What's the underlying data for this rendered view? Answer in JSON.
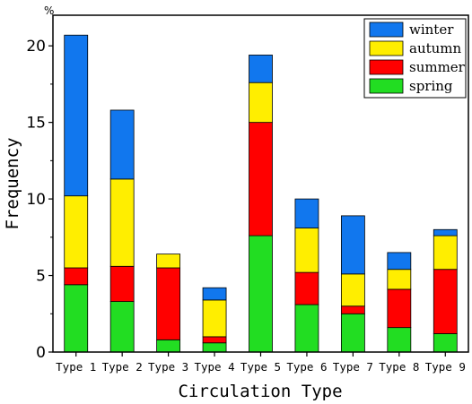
{
  "chart_data": {
    "type": "bar",
    "stacked": true,
    "categories": [
      "Type 1",
      "Type 2",
      "Type 3",
      "Type 4",
      "Type 5",
      "Type 6",
      "Type 7",
      "Type 8",
      "Type 9"
    ],
    "series": [
      {
        "name": "spring",
        "color": "#22dd22",
        "values": [
          4.4,
          3.3,
          0.8,
          0.6,
          7.6,
          3.1,
          2.5,
          1.6,
          1.2
        ]
      },
      {
        "name": "summer",
        "color": "#ff0000",
        "values": [
          1.1,
          2.3,
          4.7,
          0.4,
          7.4,
          2.1,
          0.5,
          2.5,
          4.2
        ]
      },
      {
        "name": "autumn",
        "color": "#ffee00",
        "values": [
          4.7,
          5.7,
          0.9,
          2.4,
          2.6,
          2.9,
          2.1,
          1.3,
          2.2
        ]
      },
      {
        "name": "winter",
        "color": "#1177ee",
        "values": [
          10.5,
          4.5,
          0.0,
          0.8,
          1.8,
          1.9,
          3.8,
          1.1,
          0.4
        ]
      }
    ],
    "legend_order": [
      "winter",
      "autumn",
      "summer",
      "spring"
    ],
    "xlabel": "Circulation Type",
    "ylabel": "Frequency",
    "y_unit": "%",
    "ylim": [
      0,
      22
    ],
    "yticks": [
      0,
      5,
      10,
      15,
      20
    ],
    "grid": false,
    "legend_position": "top-right"
  }
}
